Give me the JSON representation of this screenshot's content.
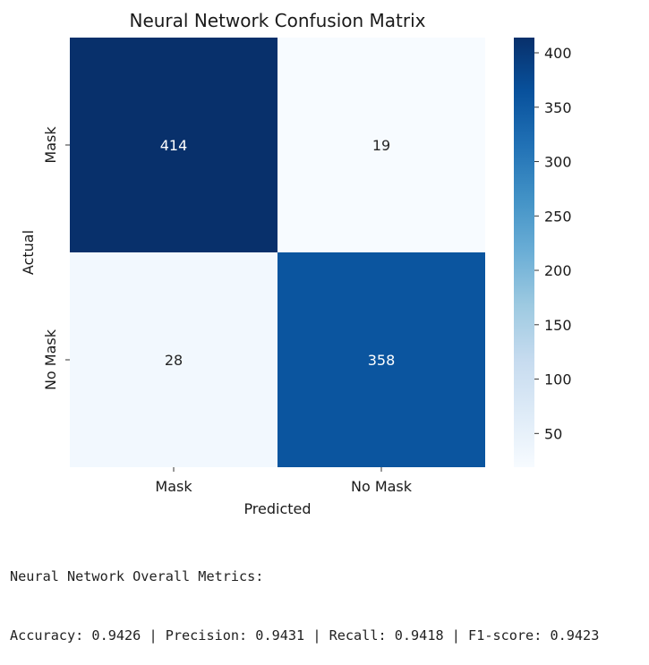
{
  "chart_data": {
    "type": "heatmap",
    "title": "Neural Network Confusion Matrix",
    "xlabel": "Predicted",
    "ylabel": "Actual",
    "x_categories": [
      "Mask",
      "No Mask"
    ],
    "y_categories": [
      "Mask",
      "No Mask"
    ],
    "values": [
      [
        414,
        19
      ],
      [
        28,
        358
      ]
    ],
    "colormap": "Blues",
    "vmin": 19,
    "vmax": 414,
    "colorbar": {
      "ticks": [
        50,
        100,
        150,
        200,
        250,
        300,
        350,
        400
      ]
    }
  },
  "metrics": {
    "heading": "Neural Network Overall Metrics:",
    "line": "Accuracy: 0.9426 | Precision: 0.9431 | Recall: 0.9418 | F1-score: 0.9423"
  }
}
